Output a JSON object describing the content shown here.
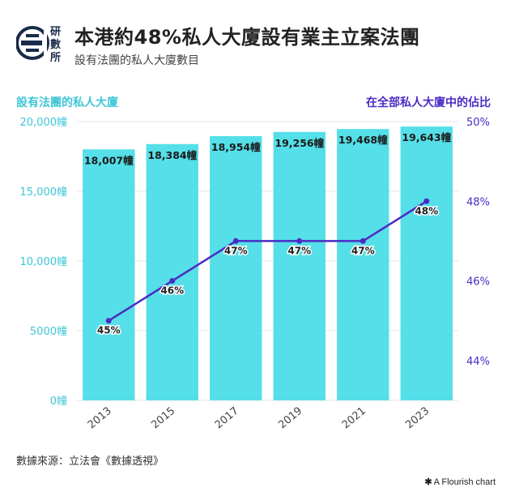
{
  "header": {
    "logo_text": "研數所",
    "title": "本港約48%私人大廈設有業主立案法團",
    "subtitle": "設有法團的私人大廈數目"
  },
  "footer": {
    "source": "數據來源：立法會《數據透視》",
    "credit": "A Flourish chart"
  },
  "colors": {
    "bar": "#55dfe8",
    "line": "#4b2bc4",
    "left_axis": "#3ec6d6",
    "right_axis": "#4b2bc4"
  },
  "chart_data": {
    "type": "bar",
    "categories": [
      "2013",
      "2015",
      "2017",
      "2019",
      "2021",
      "2023"
    ],
    "series": [
      {
        "name": "",
        "type": "bar",
        "axis": "left",
        "values": [
          18007,
          18384,
          18954,
          19256,
          19468,
          19643
        ],
        "data_labels": [
          "18,007幢",
          "18,384幢",
          "18,954幢",
          "19,256幢",
          "19,468幢",
          "19,643幢"
        ]
      },
      {
        "name": "",
        "type": "line",
        "axis": "right",
        "values": [
          45,
          46,
          47,
          47,
          47,
          48
        ],
        "data_labels": [
          "45%",
          "46%",
          "47%",
          "47%",
          "47%",
          "48%"
        ]
      }
    ],
    "y_left": {
      "label": "設有法團的私人大廈",
      "range": [
        0,
        20000
      ],
      "ticks": [
        0,
        5000,
        10000,
        15000,
        20000
      ],
      "tick_labels": [
        "0幢",
        "5000幢",
        "10,000幢",
        "15,000幢",
        "20,000幢"
      ]
    },
    "y_right": {
      "label": "在全部私人大廈中的佔比",
      "range": [
        43,
        50
      ],
      "ticks": [
        44,
        46,
        48,
        50
      ],
      "tick_labels": [
        "44%",
        "46%",
        "48%",
        "50%"
      ]
    },
    "grid": true,
    "legend": "none"
  }
}
